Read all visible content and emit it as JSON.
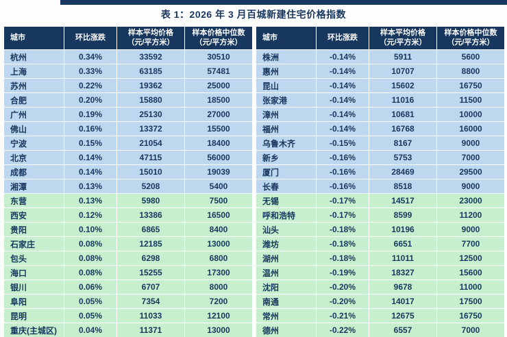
{
  "title": "表 1：2026 年 3 月百城新建住宅价格指数",
  "columns": [
    {
      "l1": "城市",
      "l2": ""
    },
    {
      "l1": "环比涨跌",
      "l2": ""
    },
    {
      "l1": "样本平均价格",
      "l2": "（元/平方米）"
    },
    {
      "l1": "样本价格中位数",
      "l2": "（元/平方米）"
    }
  ],
  "colors": {
    "accent_bar": "#17375E",
    "header_bg": "#17375E",
    "header_text": "#FFFFFF",
    "blue_row_bg": "#BDD7EE",
    "green_row_bg": "#C6EFCE",
    "text": "#17375E",
    "gridline": "#FFFFFF"
  },
  "left_table": {
    "rows": [
      {
        "city": "杭州",
        "change": "0.34%",
        "avg": "33592",
        "median": "30510",
        "group": "blue"
      },
      {
        "city": "上海",
        "change": "0.33%",
        "avg": "63185",
        "median": "57481",
        "group": "blue"
      },
      {
        "city": "苏州",
        "change": "0.22%",
        "avg": "19362",
        "median": "25000",
        "group": "blue"
      },
      {
        "city": "合肥",
        "change": "0.20%",
        "avg": "15880",
        "median": "18500",
        "group": "blue"
      },
      {
        "city": "广州",
        "change": "0.19%",
        "avg": "25130",
        "median": "27000",
        "group": "blue"
      },
      {
        "city": "佛山",
        "change": "0.16%",
        "avg": "13372",
        "median": "15500",
        "group": "blue"
      },
      {
        "city": "宁波",
        "change": "0.15%",
        "avg": "21054",
        "median": "18400",
        "group": "blue"
      },
      {
        "city": "北京",
        "change": "0.14%",
        "avg": "47115",
        "median": "56000",
        "group": "blue"
      },
      {
        "city": "成都",
        "change": "0.14%",
        "avg": "15010",
        "median": "19039",
        "group": "blue"
      },
      {
        "city": "湘潭",
        "change": "0.13%",
        "avg": "5208",
        "median": "5400",
        "group": "blue"
      },
      {
        "city": "东营",
        "change": "0.13%",
        "avg": "5980",
        "median": "7500",
        "group": "green"
      },
      {
        "city": "西安",
        "change": "0.12%",
        "avg": "13386",
        "median": "16500",
        "group": "green"
      },
      {
        "city": "贵阳",
        "change": "0.10%",
        "avg": "6865",
        "median": "8400",
        "group": "green"
      },
      {
        "city": "石家庄",
        "change": "0.08%",
        "avg": "12185",
        "median": "13000",
        "group": "green"
      },
      {
        "city": "包头",
        "change": "0.08%",
        "avg": "6298",
        "median": "6800",
        "group": "green"
      },
      {
        "city": "海口",
        "change": "0.08%",
        "avg": "15255",
        "median": "17300",
        "group": "green"
      },
      {
        "city": "银川",
        "change": "0.06%",
        "avg": "6707",
        "median": "8000",
        "group": "green"
      },
      {
        "city": "阜阳",
        "change": "0.05%",
        "avg": "7354",
        "median": "7200",
        "group": "green"
      },
      {
        "city": "昆明",
        "change": "0.05%",
        "avg": "11033",
        "median": "12100",
        "group": "green"
      },
      {
        "city": "重庆(主城区)",
        "change": "0.04%",
        "avg": "11371",
        "median": "13000",
        "group": "green"
      }
    ]
  },
  "right_table": {
    "rows": [
      {
        "city": "株洲",
        "change": "-0.14%",
        "avg": "5911",
        "median": "5600",
        "group": "blue"
      },
      {
        "city": "惠州",
        "change": "-0.14%",
        "avg": "10707",
        "median": "8800",
        "group": "blue"
      },
      {
        "city": "昆山",
        "change": "-0.14%",
        "avg": "15602",
        "median": "16750",
        "group": "blue"
      },
      {
        "city": "张家港",
        "change": "-0.14%",
        "avg": "11016",
        "median": "11500",
        "group": "blue"
      },
      {
        "city": "漳州",
        "change": "-0.14%",
        "avg": "10681",
        "median": "10000",
        "group": "blue"
      },
      {
        "city": "福州",
        "change": "-0.14%",
        "avg": "16768",
        "median": "16000",
        "group": "blue"
      },
      {
        "city": "乌鲁木齐",
        "change": "-0.15%",
        "avg": "8167",
        "median": "9000",
        "group": "blue"
      },
      {
        "city": "新乡",
        "change": "-0.16%",
        "avg": "5753",
        "median": "7000",
        "group": "blue"
      },
      {
        "city": "厦门",
        "change": "-0.16%",
        "avg": "28469",
        "median": "29500",
        "group": "blue"
      },
      {
        "city": "长春",
        "change": "-0.16%",
        "avg": "8518",
        "median": "9000",
        "group": "blue"
      },
      {
        "city": "无锡",
        "change": "-0.17%",
        "avg": "14517",
        "median": "23000",
        "group": "green"
      },
      {
        "city": "呼和浩特",
        "change": "-0.17%",
        "avg": "8599",
        "median": "11200",
        "group": "green"
      },
      {
        "city": "汕头",
        "change": "-0.18%",
        "avg": "10196",
        "median": "9000",
        "group": "green"
      },
      {
        "city": "潍坊",
        "change": "-0.18%",
        "avg": "6651",
        "median": "7700",
        "group": "green"
      },
      {
        "city": "湖州",
        "change": "-0.18%",
        "avg": "11011",
        "median": "12500",
        "group": "green"
      },
      {
        "city": "温州",
        "change": "-0.19%",
        "avg": "18327",
        "median": "15600",
        "group": "green"
      },
      {
        "city": "沈阳",
        "change": "-0.20%",
        "avg": "9678",
        "median": "11000",
        "group": "green"
      },
      {
        "city": "南通",
        "change": "-0.20%",
        "avg": "14017",
        "median": "17500",
        "group": "green"
      },
      {
        "city": "常州",
        "change": "-0.21%",
        "avg": "12675",
        "median": "16750",
        "group": "green"
      },
      {
        "city": "德州",
        "change": "-0.22%",
        "avg": "6557",
        "median": "7000",
        "group": "green"
      }
    ]
  }
}
